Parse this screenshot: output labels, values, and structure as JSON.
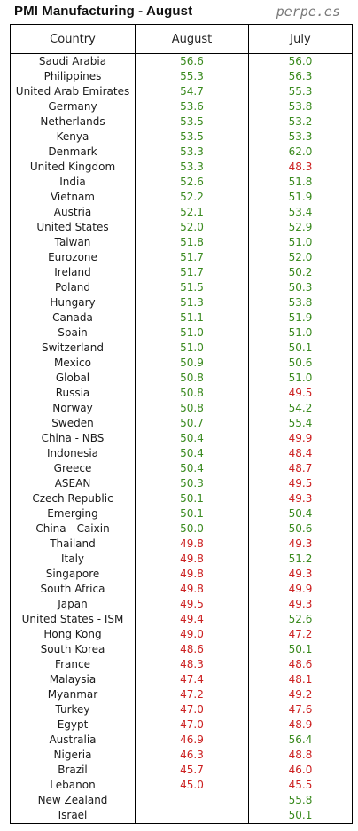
{
  "title": "PMI Manufacturing - August",
  "brand": "perpe.es",
  "colors": {
    "above": "#3a8a1e",
    "below": "#cc2020"
  },
  "chart_data": {
    "type": "table",
    "columns": [
      "Country",
      "August",
      "July"
    ],
    "threshold": 50,
    "rows": [
      {
        "country": "Saudi Arabia",
        "august": "56.6",
        "july": "56.0"
      },
      {
        "country": "Philippines",
        "august": "55.3",
        "july": "56.3"
      },
      {
        "country": "United Arab Emirates",
        "august": "54.7",
        "july": "55.3"
      },
      {
        "country": "Germany",
        "august": "53.6",
        "july": "53.8"
      },
      {
        "country": "Netherlands",
        "august": "53.5",
        "july": "53.2"
      },
      {
        "country": "Kenya",
        "august": "53.5",
        "july": "53.3"
      },
      {
        "country": "Denmark",
        "august": "53.3",
        "july": "62.0"
      },
      {
        "country": "United Kingdom",
        "august": "53.3",
        "july": "48.3"
      },
      {
        "country": "India",
        "august": "52.6",
        "july": "51.8"
      },
      {
        "country": "Vietnam",
        "august": "52.2",
        "july": "51.9"
      },
      {
        "country": "Austria",
        "august": "52.1",
        "july": "53.4"
      },
      {
        "country": "United States",
        "august": "52.0",
        "july": "52.9"
      },
      {
        "country": "Taiwan",
        "august": "51.8",
        "july": "51.0"
      },
      {
        "country": "Eurozone",
        "august": "51.7",
        "july": "52.0"
      },
      {
        "country": "Ireland",
        "august": "51.7",
        "july": "50.2"
      },
      {
        "country": "Poland",
        "august": "51.5",
        "july": "50.3"
      },
      {
        "country": "Hungary",
        "august": "51.3",
        "july": "53.8"
      },
      {
        "country": "Canada",
        "august": "51.1",
        "july": "51.9"
      },
      {
        "country": "Spain",
        "august": "51.0",
        "july": "51.0"
      },
      {
        "country": "Switzerland",
        "august": "51.0",
        "july": "50.1"
      },
      {
        "country": "Mexico",
        "august": "50.9",
        "july": "50.6"
      },
      {
        "country": "Global",
        "august": "50.8",
        "july": "51.0"
      },
      {
        "country": "Russia",
        "august": "50.8",
        "july": "49.5"
      },
      {
        "country": "Norway",
        "august": "50.8",
        "july": "54.2"
      },
      {
        "country": "Sweden",
        "august": "50.7",
        "july": "55.4"
      },
      {
        "country": "China - NBS",
        "august": "50.4",
        "july": "49.9"
      },
      {
        "country": "Indonesia",
        "august": "50.4",
        "july": "48.4"
      },
      {
        "country": "Greece",
        "august": "50.4",
        "july": "48.7"
      },
      {
        "country": "ASEAN",
        "august": "50.3",
        "july": "49.5"
      },
      {
        "country": "Czech Republic",
        "august": "50.1",
        "july": "49.3"
      },
      {
        "country": "Emerging",
        "august": "50.1",
        "july": "50.4"
      },
      {
        "country": "China - Caixin",
        "august": "50.0",
        "july": "50.6"
      },
      {
        "country": "Thailand",
        "august": "49.8",
        "july": "49.3"
      },
      {
        "country": "Italy",
        "august": "49.8",
        "july": "51.2"
      },
      {
        "country": "Singapore",
        "august": "49.8",
        "july": "49.3"
      },
      {
        "country": "South Africa",
        "august": "49.8",
        "july": "49.9"
      },
      {
        "country": "Japan",
        "august": "49.5",
        "july": "49.3"
      },
      {
        "country": "United States - ISM",
        "august": "49.4",
        "july": "52.6"
      },
      {
        "country": "Hong Kong",
        "august": "49.0",
        "july": "47.2"
      },
      {
        "country": "South Korea",
        "august": "48.6",
        "july": "50.1"
      },
      {
        "country": "France",
        "august": "48.3",
        "july": "48.6"
      },
      {
        "country": "Malaysia",
        "august": "47.4",
        "july": "48.1"
      },
      {
        "country": "Myanmar",
        "august": "47.2",
        "july": "49.2"
      },
      {
        "country": "Turkey",
        "august": "47.0",
        "july": "47.6"
      },
      {
        "country": "Egypt",
        "august": "47.0",
        "july": "48.9"
      },
      {
        "country": "Australia",
        "august": "46.9",
        "july": "56.4"
      },
      {
        "country": "Nigeria",
        "august": "46.3",
        "july": "48.8"
      },
      {
        "country": "Brazil",
        "august": "45.7",
        "july": "46.0"
      },
      {
        "country": "Lebanon",
        "august": "45.0",
        "july": "45.5"
      },
      {
        "country": "New Zealand",
        "august": "",
        "july": "55.8"
      },
      {
        "country": "Israel",
        "august": "",
        "july": "50.1"
      }
    ]
  }
}
